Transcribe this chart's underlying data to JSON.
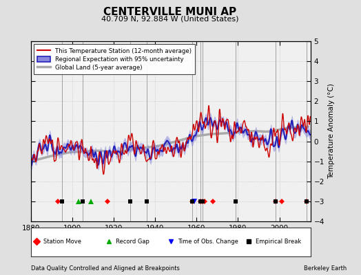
{
  "title": "CENTERVILLE MUNI AP",
  "subtitle": "40.709 N, 92.884 W (United States)",
  "footer_left": "Data Quality Controlled and Aligned at Breakpoints",
  "footer_right": "Berkeley Earth",
  "ylabel": "Temperature Anomaly (°C)",
  "xlim": [
    1880,
    2015
  ],
  "ylim": [
    -4,
    5
  ],
  "yticks": [
    -4,
    -3,
    -2,
    -1,
    0,
    1,
    2,
    3,
    4,
    5
  ],
  "xticks": [
    1880,
    1900,
    1920,
    1940,
    1960,
    1980,
    2000
  ],
  "bg_color": "#e0e0e0",
  "plot_bg_color": "#f0f0f0",
  "station_moves": [
    1893,
    1917,
    1958,
    1962,
    1963,
    1964,
    1968,
    1998,
    2001,
    2013
  ],
  "record_gaps": [
    1903,
    1909
  ],
  "tobs_changes": [
    1959
  ],
  "empirical_breaks": [
    1895,
    1905,
    1928,
    1936,
    1958,
    1962,
    1963,
    1979,
    1998,
    2013
  ],
  "break_y": -3.0,
  "vertical_lines_years": [
    1895,
    1905,
    1928,
    1936,
    1958,
    1962,
    1963,
    1979,
    1998,
    2013
  ],
  "station_color": "#cc0000",
  "regional_color": "#2222bb",
  "regional_fill": "#8888dd",
  "global_color": "#aaaaaa",
  "global_linewidth": 2.5,
  "station_linewidth": 1.0,
  "regional_linewidth": 1.5
}
